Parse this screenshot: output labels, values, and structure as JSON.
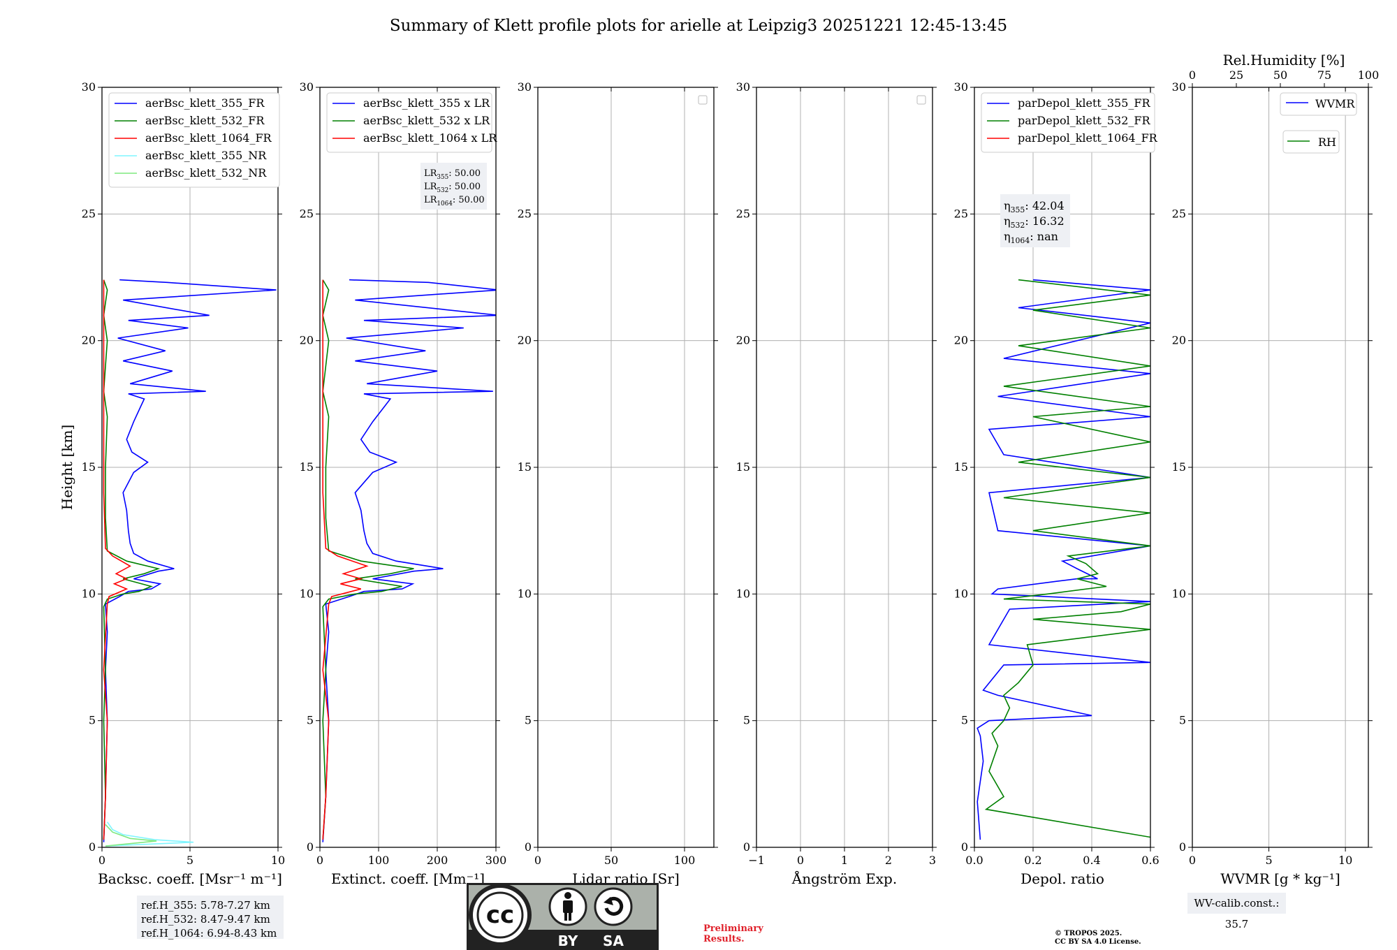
{
  "figure": {
    "title": "Summary of Klett profile plots for arielle at Leipzig3 20251221 12:45-13:45"
  },
  "colors": {
    "blue": "#0000ff",
    "green": "#008000",
    "red": "#ff0000",
    "cyan": "#7ff5ff",
    "lightgreen": "#7fe87f",
    "grid": "#b0b0b0"
  },
  "chart_data": [
    {
      "type": "line",
      "id": "backscatter",
      "xlabel": "Backsc. coeff. [Msr⁻¹ m⁻¹]",
      "ylabel": "Height [km]",
      "xlim": [
        0,
        10
      ],
      "ylim": [
        0,
        30
      ],
      "xticks": [
        "0",
        "5",
        "10"
      ],
      "yticks": [
        "0",
        "5",
        "10",
        "15",
        "20",
        "25",
        "30"
      ],
      "legend": [
        "aerBsc_klett_355_FR",
        "aerBsc_klett_532_FR",
        "aerBsc_klett_1064_FR",
        "aerBsc_klett_355_NR",
        "aerBsc_klett_532_NR"
      ],
      "series": [
        {
          "name": "aerBsc_klett_355_FR",
          "color": "blue",
          "x": [
            0.1,
            0.2,
            0.3,
            0.2,
            0.3,
            0.2,
            1.0,
            1.5,
            2.8,
            3.3,
            1.8,
            3.2,
            4.1,
            2.6,
            1.8,
            1.6,
            1.5,
            1.4,
            1.2,
            1.8,
            2.6,
            1.7,
            1.4,
            1.8,
            2.2,
            2.4,
            1.5,
            5.9,
            1.6,
            4.0,
            1.2,
            3.6,
            0.9,
            4.9,
            1.5,
            6.1,
            1.2,
            9.9,
            3.7,
            1.0
          ],
          "y": [
            0.2,
            2,
            5,
            7,
            8.5,
            9.6,
            9.9,
            10.1,
            10.2,
            10.4,
            10.6,
            10.9,
            11.0,
            11.3,
            11.6,
            12.0,
            12.5,
            13.3,
            14,
            14.8,
            15.2,
            15.6,
            16.1,
            16.8,
            17.4,
            17.7,
            17.9,
            18.0,
            18.3,
            18.8,
            19.2,
            19.6,
            20.1,
            20.5,
            20.8,
            21.0,
            21.6,
            22.0,
            22.3,
            22.4
          ]
        },
        {
          "name": "aerBsc_klett_532_FR",
          "color": "green",
          "x": [
            0.1,
            0.2,
            0.1,
            0.2,
            0.1,
            0.3,
            1.2,
            2.1,
            2.8,
            1.2,
            2.4,
            3.2,
            1.4,
            0.3,
            0.2,
            0.2,
            0.3,
            0.1,
            0.2,
            0.3,
            0.1,
            0.3,
            0.1
          ],
          "y": [
            0.3,
            2,
            5,
            7,
            9.5,
            9.8,
            10.0,
            10.1,
            10.3,
            10.6,
            10.8,
            11.0,
            11.3,
            11.7,
            13,
            15,
            17,
            18,
            19,
            20,
            21,
            22,
            22.4
          ]
        },
        {
          "name": "aerBsc_klett_1064_FR",
          "color": "red",
          "x": [
            0.1,
            0.2,
            0.3,
            0.1,
            0.3,
            0.4,
            1.4,
            0.7,
            1.4,
            0.8,
            1.6,
            0.6,
            0.2,
            0.1,
            0.1,
            0.1,
            0.1
          ],
          "y": [
            0.3,
            2,
            5,
            7,
            9.6,
            9.9,
            10.2,
            10.4,
            10.6,
            10.8,
            11.1,
            11.5,
            11.8,
            14,
            17,
            20,
            22.4
          ]
        },
        {
          "name": "aerBsc_klett_355_NR",
          "color": "cyan",
          "x": [
            0.2,
            5.2,
            3.0,
            1.2,
            0.6,
            0.3
          ],
          "y": [
            0.05,
            0.2,
            0.3,
            0.5,
            0.7,
            1.0
          ]
        },
        {
          "name": "aerBsc_klett_532_NR",
          "color": "lightgreen",
          "x": [
            0.2,
            3.1,
            1.6,
            0.6,
            0.2
          ],
          "y": [
            0.05,
            0.25,
            0.35,
            0.6,
            0.9
          ]
        }
      ],
      "info_box": [
        "ref.H_355: 5.78-7.27 km",
        "ref.H_532: 8.47-9.47 km",
        "ref.H_1064: 6.94-8.43 km"
      ]
    },
    {
      "type": "line",
      "id": "extinction",
      "xlabel": "Extinct. coeff. [Mm⁻¹]",
      "xlim": [
        0,
        300
      ],
      "ylim": [
        0,
        30
      ],
      "xticks": [
        "0",
        "100",
        "200",
        "300"
      ],
      "yticks": [
        "0",
        "5",
        "10",
        "15",
        "20",
        "25",
        "30"
      ],
      "legend": [
        "aerBsc_klett_355 x LR",
        "aerBsc_klett_532 x LR",
        "aerBsc_klett_1064 x LR"
      ],
      "series": [
        {
          "name": "aerBsc_klett_355 x LR",
          "color": "blue",
          "x": [
            5,
            10,
            15,
            10,
            15,
            10,
            50,
            75,
            140,
            158,
            90,
            160,
            210,
            130,
            90,
            80,
            75,
            70,
            60,
            90,
            130,
            85,
            70,
            90,
            110,
            120,
            75,
            295,
            80,
            200,
            60,
            180,
            45,
            245,
            75,
            305,
            60,
            305,
            185,
            50
          ],
          "y": [
            0.2,
            2,
            5,
            7,
            8.5,
            9.6,
            9.9,
            10.1,
            10.2,
            10.4,
            10.6,
            10.9,
            11.0,
            11.3,
            11.6,
            12.0,
            12.5,
            13.3,
            14,
            14.8,
            15.2,
            15.6,
            16.1,
            16.8,
            17.4,
            17.7,
            17.9,
            18.0,
            18.3,
            18.8,
            19.2,
            19.6,
            20.1,
            20.5,
            20.8,
            21.0,
            21.6,
            22.0,
            22.3,
            22.4
          ]
        },
        {
          "name": "aerBsc_klett_532 x LR",
          "color": "green",
          "x": [
            5,
            10,
            5,
            10,
            5,
            15,
            60,
            105,
            140,
            60,
            120,
            160,
            70,
            15,
            10,
            10,
            15,
            5,
            10,
            15,
            5,
            15,
            5
          ],
          "y": [
            0.3,
            2,
            5,
            7,
            9.5,
            9.8,
            10.0,
            10.1,
            10.3,
            10.6,
            10.8,
            11.0,
            11.3,
            11.7,
            13,
            15,
            17,
            18,
            19,
            20,
            21,
            22,
            22.4
          ]
        },
        {
          "name": "aerBsc_klett_1064 x LR",
          "color": "red",
          "x": [
            5,
            10,
            15,
            5,
            15,
            20,
            70,
            35,
            70,
            40,
            80,
            30,
            10,
            5,
            5,
            5,
            5
          ],
          "y": [
            0.3,
            2,
            5,
            7,
            9.6,
            9.9,
            10.2,
            10.4,
            10.6,
            10.8,
            11.1,
            11.5,
            11.8,
            14,
            17,
            20,
            22.4
          ]
        }
      ],
      "info_box": [
        {
          "base": "LR",
          "sub": "355",
          "value": ": 50.00"
        },
        {
          "base": "LR",
          "sub": "532",
          "value": ": 50.00"
        },
        {
          "base": "LR",
          "sub": "1064",
          "value": ": 50.00"
        }
      ]
    },
    {
      "type": "line",
      "id": "lidar_ratio",
      "xlabel": "Lidar ratio [Sr]",
      "xlim": [
        0,
        120
      ],
      "ylim": [
        0,
        30
      ],
      "xticks": [
        "0",
        "50",
        "100"
      ],
      "yticks": [
        "0",
        "5",
        "10",
        "15",
        "20",
        "25",
        "30"
      ],
      "series": []
    },
    {
      "type": "line",
      "id": "angstroem",
      "xlabel": "Ångström Exp.",
      "xlim": [
        -1,
        3
      ],
      "ylim": [
        0,
        30
      ],
      "xticks": [
        "−1",
        "0",
        "1",
        "2",
        "3"
      ],
      "yticks": [
        "0",
        "5",
        "10",
        "15",
        "20",
        "25",
        "30"
      ],
      "series": []
    },
    {
      "type": "line",
      "id": "depol",
      "xlabel": "Depol. ratio",
      "xlim": [
        0,
        0.6
      ],
      "ylim": [
        0,
        30
      ],
      "xticks": [
        "0.0",
        "0.2",
        "0.4",
        "0.6"
      ],
      "yticks": [
        "0",
        "5",
        "10",
        "15",
        "20",
        "25",
        "30"
      ],
      "legend": [
        "parDepol_klett_355_FR",
        "parDepol_klett_532_FR",
        "parDepol_klett_1064_FR"
      ],
      "series": [
        {
          "name": "parDepol_klett_355_FR",
          "color": "blue",
          "x": [
            0.02,
            0.01,
            0.03,
            0.02,
            0.01,
            0.05,
            0.4,
            0.08,
            0.03,
            0.1,
            0.6,
            0.05,
            0.08,
            0.1,
            0.12,
            0.6,
            0.06,
            0.08,
            0.28,
            0.35,
            0.42,
            0.35,
            0.3,
            0.6,
            0.08,
            0.05,
            0.6,
            0.1,
            0.05,
            0.6,
            0.08,
            0.6,
            0.1,
            0.6,
            0.15,
            0.6,
            0.2
          ],
          "y": [
            0.3,
            1.8,
            3.4,
            4.4,
            4.7,
            5.0,
            5.2,
            6.0,
            6.2,
            7.2,
            7.3,
            8.0,
            8.6,
            9.0,
            9.4,
            9.7,
            10.0,
            10.2,
            10.5,
            10.6,
            10.6,
            11.0,
            11.3,
            11.9,
            12.5,
            14.0,
            14.6,
            15.5,
            16.5,
            17.0,
            17.8,
            18.7,
            19.3,
            20.7,
            21.3,
            22.0,
            22.4
          ]
        },
        {
          "name": "parDepol_klett_532_FR",
          "color": "green",
          "x": [
            0.6,
            0.04,
            0.1,
            0.05,
            0.08,
            0.06,
            0.1,
            0.12,
            0.1,
            0.15,
            0.2,
            0.18,
            0.6,
            0.2,
            0.5,
            0.6,
            0.1,
            0.25,
            0.45,
            0.35,
            0.42,
            0.4,
            0.38,
            0.32,
            0.6,
            0.2,
            0.6,
            0.1,
            0.6,
            0.15,
            0.6,
            0.2,
            0.6,
            0.1,
            0.6,
            0.15,
            0.6,
            0.2,
            0.6,
            0.15
          ],
          "y": [
            0.4,
            1.5,
            2.0,
            3.0,
            4.0,
            4.5,
            5.0,
            5.5,
            6.0,
            6.5,
            7.2,
            8.0,
            8.6,
            9.0,
            9.3,
            9.6,
            9.8,
            10.0,
            10.3,
            10.6,
            10.8,
            11.0,
            11.2,
            11.5,
            11.9,
            12.5,
            13.2,
            13.8,
            14.6,
            15.2,
            16.0,
            17.0,
            17.4,
            18.2,
            19.0,
            19.8,
            20.5,
            21.2,
            21.8,
            22.4
          ]
        },
        {
          "name": "parDepol_klett_1064_FR",
          "color": "red",
          "x": [],
          "y": []
        }
      ],
      "info_box": [
        {
          "base": "η",
          "sub": "355",
          "value": ": 42.04"
        },
        {
          "base": "η",
          "sub": "532",
          "value": ": 16.32"
        },
        {
          "base": "η",
          "sub": "1064",
          "value": ": nan"
        }
      ]
    },
    {
      "type": "line",
      "id": "wvmr",
      "xlabel": "WVMR [g * kg⁻¹]",
      "top_xlabel": "Rel.Humidity [%]",
      "xlim": [
        0,
        11.5
      ],
      "ylim": [
        0,
        30
      ],
      "xticks": [
        "0",
        "5",
        "10"
      ],
      "top_xticks": [
        "0",
        "25",
        "50",
        "75",
        "100"
      ],
      "yticks": [
        "0",
        "5",
        "10",
        "15",
        "20",
        "25",
        "30"
      ],
      "legend": [
        "WVMR",
        "RH"
      ],
      "series": [],
      "info_box": [
        "WV-calib.const.: 35.7"
      ]
    }
  ],
  "footer": {
    "preliminary": [
      "Preliminary",
      "Results."
    ],
    "copyright": [
      "© TROPOS 2025.",
      "CC BY SA 4.0 License."
    ],
    "cc_logo": {
      "cc": "cc",
      "by": "BY",
      "sa": "SA"
    }
  }
}
